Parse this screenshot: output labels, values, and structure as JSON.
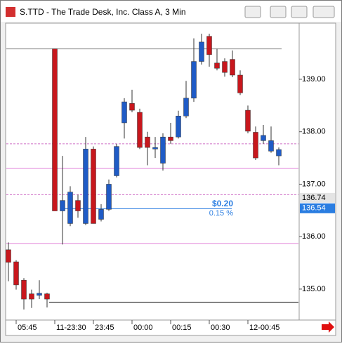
{
  "window_title": "S.TTD - The Trade Desk, Inc. Class A, 3 Min",
  "chart_data": {
    "type": "candlestick",
    "categories": [
      null,
      "05:45",
      null,
      null,
      null,
      null,
      "11-23:30",
      null,
      null,
      null,
      null,
      "23:45",
      null,
      null,
      null,
      null,
      "00:00",
      null,
      null,
      null,
      null,
      "00:15",
      null,
      null,
      null,
      null,
      "00:30",
      null,
      null,
      null,
      null,
      "12-00:45",
      null,
      null,
      null,
      null
    ],
    "open": [
      135.75,
      135.52,
      135.17,
      134.91,
      134.88,
      134.91,
      139.58,
      136.49,
      136.25,
      136.69,
      136.25,
      137.67,
      136.33,
      136.52,
      137.16,
      138.17,
      138.54,
      138.37,
      137.9,
      137.67,
      137.4,
      137.9,
      137.9,
      138.3,
      138.64,
      139.34,
      139.82,
      139.31,
      139.34,
      139.38,
      139.08,
      138.41,
      137.99,
      137.83,
      137.63,
      137.54
    ],
    "high": [
      135.89,
      135.55,
      135.21,
      134.99,
      135.17,
      134.93,
      139.58,
      137.54,
      136.96,
      136.8,
      137.9,
      137.72,
      136.62,
      137.09,
      137.77,
      138.64,
      138.8,
      138.44,
      138.0,
      137.9,
      137.97,
      138.17,
      138.4,
      138.97,
      139.78,
      139.87,
      139.87,
      139.58,
      139.4,
      139.55,
      139.17,
      138.5,
      138.1,
      138.13,
      138.1,
      137.7
    ],
    "low": [
      135.15,
      134.99,
      134.61,
      134.64,
      134.81,
      134.65,
      136.49,
      135.85,
      136.2,
      136.36,
      136.22,
      136.25,
      136.29,
      136.49,
      137.13,
      137.87,
      138.37,
      137.67,
      137.36,
      137.5,
      137.26,
      137.77,
      137.87,
      138.26,
      138.57,
      139.28,
      139.24,
      139.17,
      139.05,
      139.04,
      138.7,
      137.97,
      137.46,
      137.77,
      137.6,
      137.36
    ],
    "close": [
      135.51,
      135.08,
      134.81,
      134.81,
      134.92,
      134.81,
      136.49,
      136.69,
      136.85,
      136.49,
      137.67,
      136.25,
      136.52,
      137.0,
      137.72,
      138.57,
      138.41,
      137.7,
      137.7,
      137.7,
      137.9,
      137.83,
      138.3,
      138.64,
      139.34,
      139.71,
      139.47,
      139.21,
      139.13,
      139.08,
      138.74,
      138.01,
      137.5,
      137.93,
      137.83,
      137.66
    ],
    "up_color": "#1f5bc6",
    "down_color": "#c8171d",
    "ylim": [
      134.41,
      140.07
    ],
    "yticks": [
      {
        "value": 135,
        "label": "135.00"
      },
      {
        "value": 136,
        "label": "136.00"
      },
      {
        "value": 137,
        "label": "137.00"
      },
      {
        "value": 138,
        "label": "138.00"
      },
      {
        "value": 139,
        "label": "139.00"
      }
    ],
    "hlines": [
      {
        "value": 139.58,
        "color": "#8c8c8c",
        "dashed": false
      },
      {
        "value": 137.77,
        "color": "#d070c8",
        "dashed": true
      },
      {
        "value": 137.3,
        "color": "#e080d8",
        "dashed": false
      },
      {
        "value": 136.8,
        "color": "#d070c8",
        "dashed": true
      },
      {
        "value": 135.87,
        "color": "#e080d8",
        "dashed": false
      },
      {
        "value": 136.53,
        "color": "#2a7de1",
        "dashed": false
      },
      {
        "value": 134.75,
        "color": "#000000",
        "dashed": false
      }
    ],
    "price_tags": [
      {
        "value": 136.74,
        "label": "136.74",
        "color": "#e4e4e4",
        "text_color": "#000000"
      },
      {
        "value": 136.54,
        "label": "136.54",
        "color": "#2a7de1",
        "text_color": "#ffffff"
      }
    ],
    "annotations": [
      "$0.20",
      "0.15 %"
    ]
  }
}
